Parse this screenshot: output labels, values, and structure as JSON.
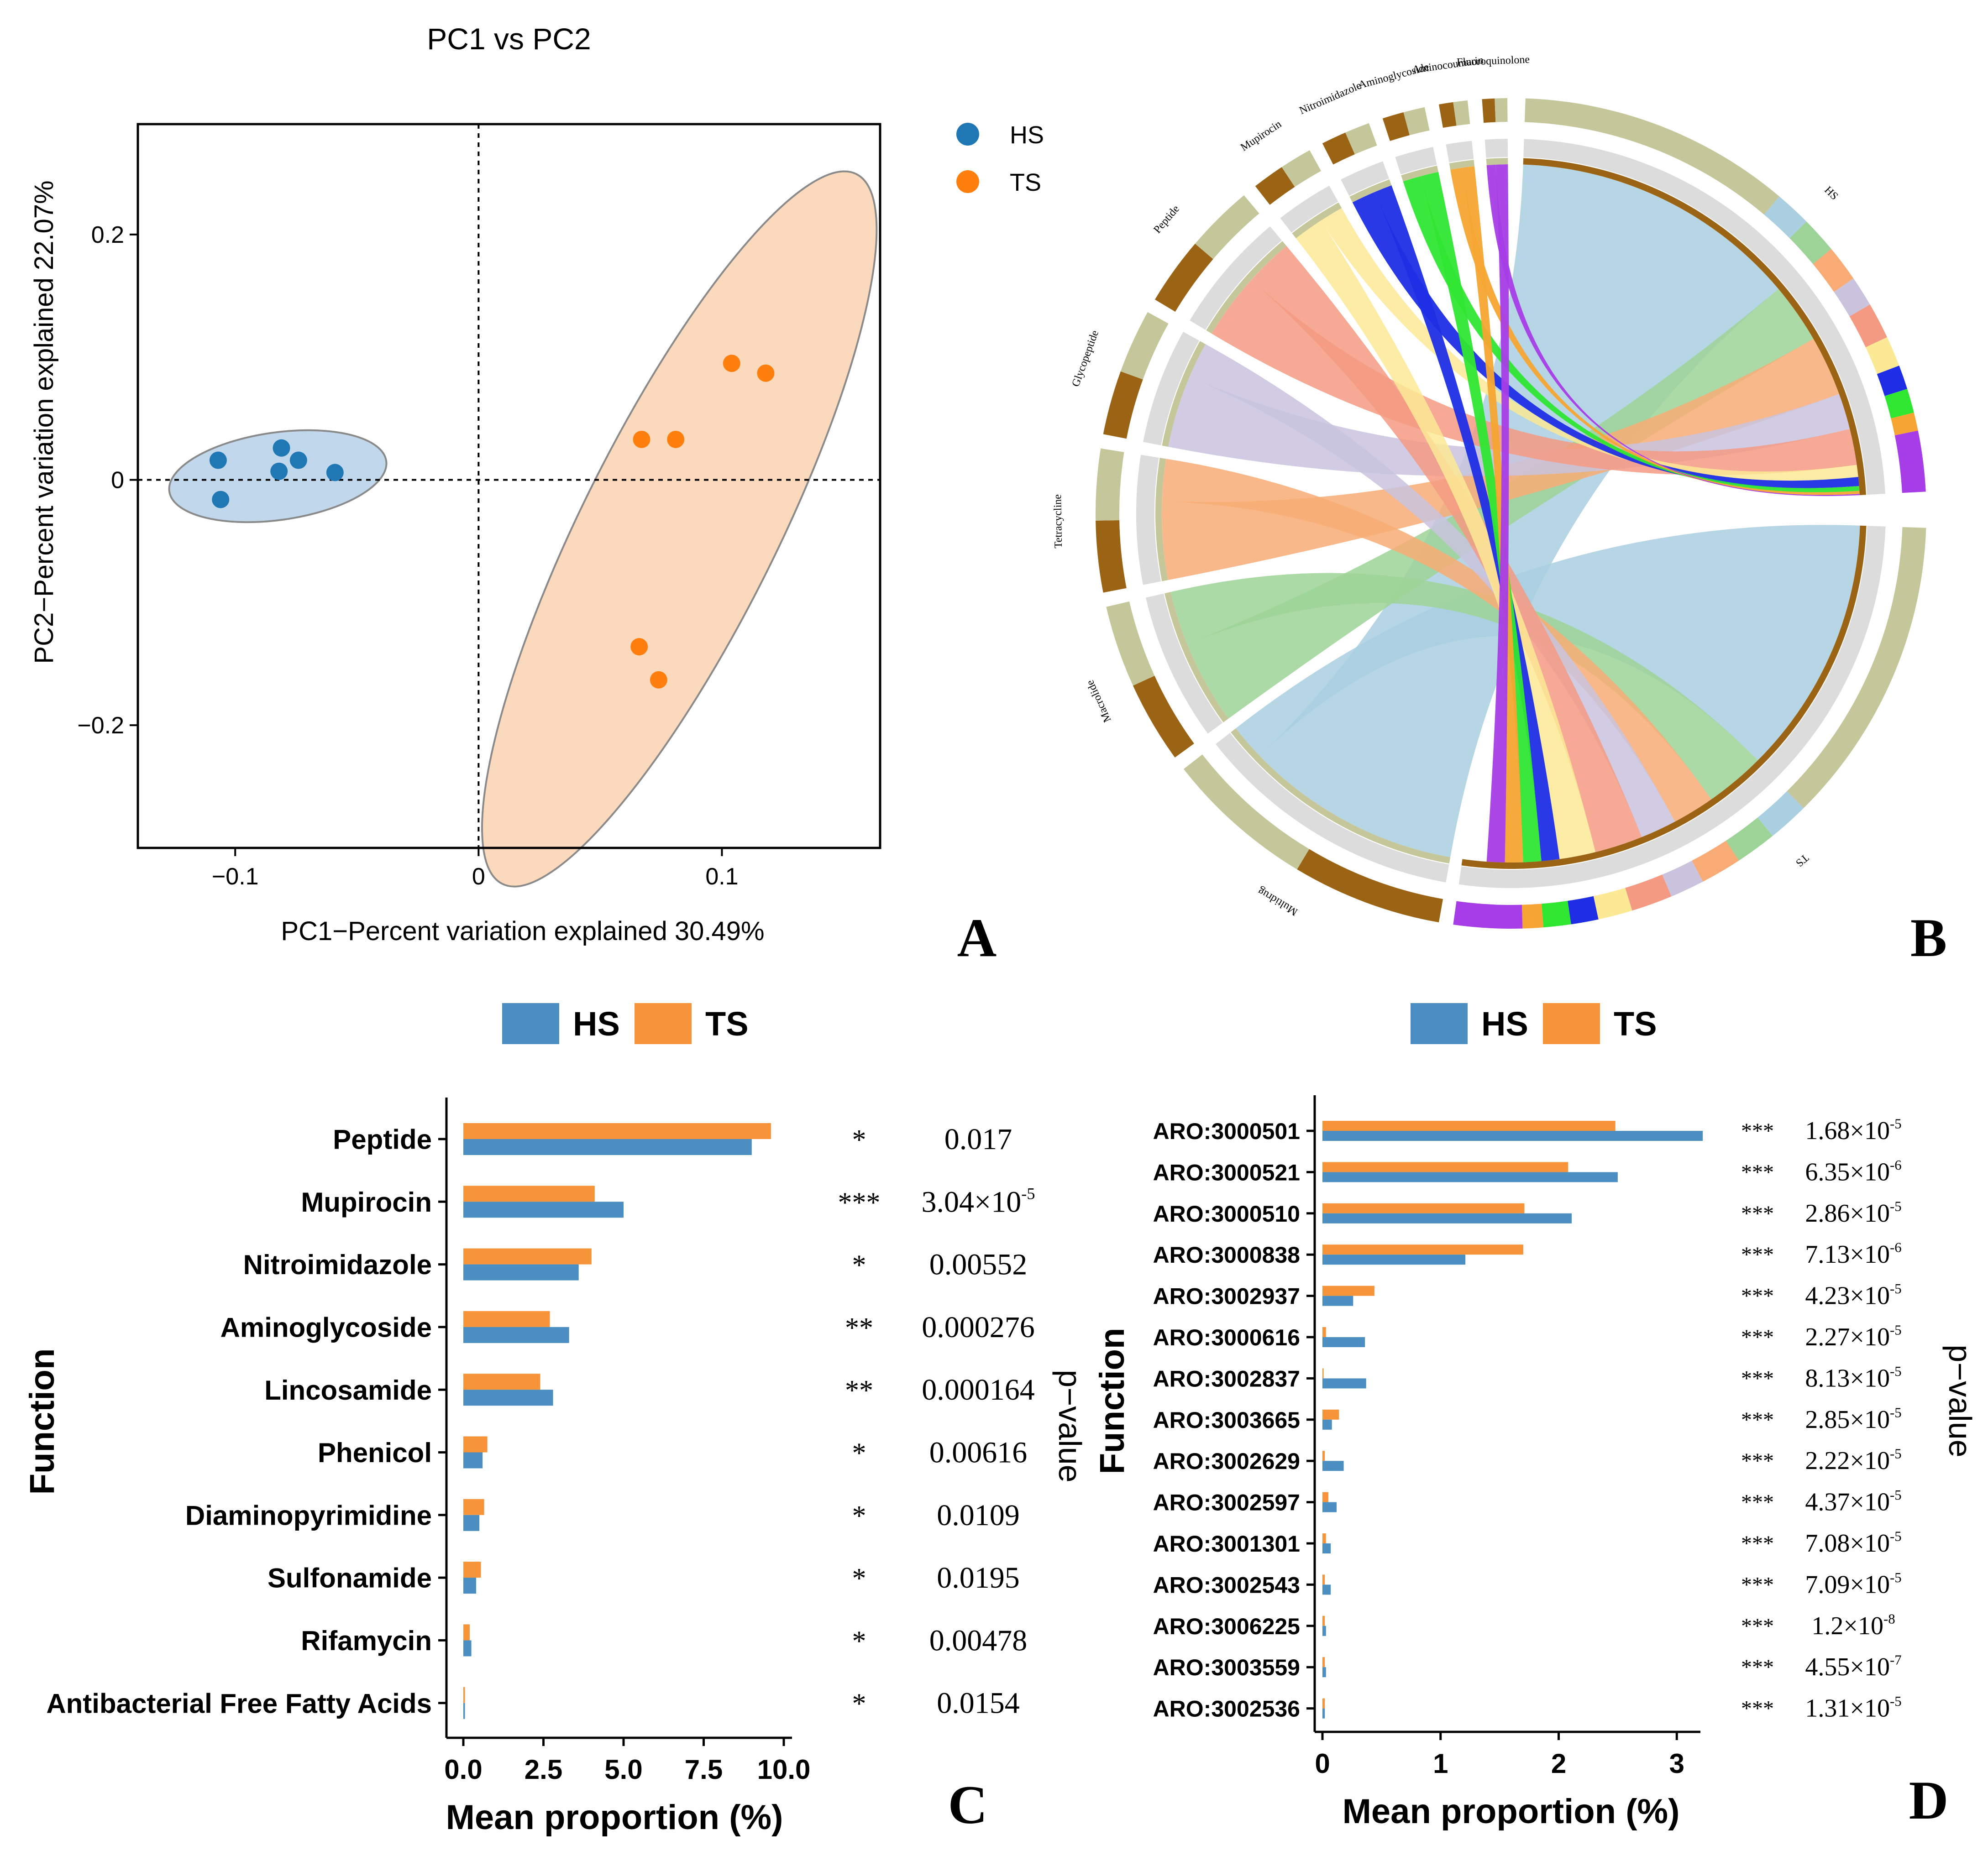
{
  "colors": {
    "hs": "#4a8ec2",
    "ts": "#f7943a",
    "hs_point": "#1f77b4",
    "ts_point": "#ff7f0e",
    "hs_ellipse": "#b9d3ea",
    "ts_ellipse": "#fbd5b5",
    "antibiotic_ring": "#9a6414",
    "sample_ring": "#c5c79a"
  },
  "panel_labels": {
    "a": "A",
    "b": "B",
    "c": "C",
    "d": "D"
  },
  "chart_data": [
    {
      "id": "A",
      "type": "scatter",
      "title": "PC1 vs PC2",
      "xlabel": "PC1−Percent variation explained 30.49%",
      "ylabel": "PC2−Percent variation explained 22.07%",
      "xlim": [
        -0.14,
        0.165
      ],
      "ylim": [
        -0.3,
        0.29
      ],
      "xticks": [
        -0.1,
        0,
        0.1
      ],
      "xtick_labels": [
        "−0.1",
        "0",
        "0.1"
      ],
      "yticks": [
        -0.2,
        0,
        0.2
      ],
      "ytick_labels": [
        "−0.2",
        "0",
        "0.2"
      ],
      "legend": {
        "position": "top-right",
        "entries": [
          "HS",
          "TS"
        ]
      },
      "series": [
        {
          "name": "HS",
          "points": [
            [
              -0.107,
              0.016
            ],
            [
              -0.106,
              -0.016
            ],
            [
              -0.081,
              0.026
            ],
            [
              -0.082,
              0.007
            ],
            [
              -0.074,
              0.016
            ],
            [
              -0.059,
              0.006
            ]
          ]
        },
        {
          "name": "TS",
          "points": [
            [
              0.104,
              0.095
            ],
            [
              0.118,
              0.087
            ],
            [
              0.067,
              0.033
            ],
            [
              0.081,
              0.033
            ],
            [
              0.066,
              -0.136
            ],
            [
              0.074,
              -0.163
            ]
          ]
        }
      ]
    },
    {
      "id": "B",
      "type": "chord",
      "groups": [
        "HS",
        "TS"
      ],
      "categories": [
        "Multidrug",
        "Macrolide",
        "Tetracycline",
        "Glycopeptide",
        "Peptide",
        "Mupirocin",
        "Nitroimidazole",
        "Aminoglycoside",
        "Aminocoumarin",
        "Fluoroquinolone"
      ],
      "link_colors": [
        "#a9cfe0",
        "#9ed397",
        "#f8ab74",
        "#c9c3de",
        "#f59a82",
        "#fbe995",
        "#1f2ee5",
        "#2fe631",
        "#f6a532",
        "#a63de6"
      ]
    },
    {
      "id": "C",
      "type": "bar",
      "orientation": "horizontal",
      "xlabel": "Mean proportion (%)",
      "ylabel": "Function",
      "right_label": "p−value",
      "xlim": [
        0,
        10
      ],
      "xticks": [
        0,
        2.5,
        5,
        7.5,
        10
      ],
      "xtick_labels": [
        "0.0",
        "2.5",
        "5.0",
        "7.5",
        "10.0"
      ],
      "legend": [
        "HS",
        "TS"
      ],
      "categories": [
        "Peptide",
        "Mupirocin",
        "Nitroimidazole",
        "Aminoglycoside",
        "Lincosamide",
        "Phenicol",
        "Diaminopyrimidine",
        "Sulfonamide",
        "Rifamycin",
        "Antibacterial Free Fatty Acids"
      ],
      "series": [
        {
          "name": "TS",
          "values": [
            9.6,
            4.1,
            4.0,
            2.7,
            2.4,
            0.75,
            0.65,
            0.55,
            0.2,
            0.05
          ]
        },
        {
          "name": "HS",
          "values": [
            9.0,
            5.0,
            3.6,
            3.3,
            2.8,
            0.6,
            0.5,
            0.4,
            0.25,
            0.05
          ]
        }
      ],
      "significance": [
        "*",
        "***",
        "*",
        "**",
        "**",
        "*",
        "*",
        "*",
        "*",
        "*"
      ],
      "p_values": [
        {
          "base": "0.017",
          "exp": ""
        },
        {
          "base": "3.04×10",
          "exp": "-5"
        },
        {
          "base": "0.00552",
          "exp": ""
        },
        {
          "base": "0.000276",
          "exp": ""
        },
        {
          "base": "0.000164",
          "exp": ""
        },
        {
          "base": "0.00616",
          "exp": ""
        },
        {
          "base": "0.0109",
          "exp": ""
        },
        {
          "base": "0.0195",
          "exp": ""
        },
        {
          "base": "0.00478",
          "exp": ""
        },
        {
          "base": "0.0154",
          "exp": ""
        }
      ]
    },
    {
      "id": "D",
      "type": "bar",
      "orientation": "horizontal",
      "xlabel": "Mean proportion (%)",
      "ylabel": "Function",
      "right_label": "p−value",
      "xlim": [
        0,
        3.2
      ],
      "xticks": [
        0,
        1,
        2,
        3
      ],
      "xtick_labels": [
        "0",
        "1",
        "2",
        "3"
      ],
      "legend": [
        "HS",
        "TS"
      ],
      "categories": [
        "ARO:3000501",
        "ARO:3000521",
        "ARO:3000510",
        "ARO:3000838",
        "ARO:3002937",
        "ARO:3000616",
        "ARO:3002837",
        "ARO:3003665",
        "ARO:3002629",
        "ARO:3002597",
        "ARO:3001301",
        "ARO:3002543",
        "ARO:3006225",
        "ARO:3003559",
        "ARO:3002536"
      ],
      "series": [
        {
          "name": "TS",
          "values": [
            2.48,
            2.08,
            1.71,
            1.7,
            0.44,
            0.03,
            0.01,
            0.14,
            0.02,
            0.05,
            0.03,
            0.02,
            0.02,
            0.02,
            0.02
          ]
        },
        {
          "name": "HS",
          "values": [
            3.22,
            2.5,
            2.11,
            1.21,
            0.26,
            0.36,
            0.37,
            0.08,
            0.18,
            0.12,
            0.07,
            0.07,
            0.03,
            0.03,
            0.02
          ]
        }
      ],
      "significance": [
        "***",
        "***",
        "***",
        "***",
        "***",
        "***",
        "***",
        "***",
        "***",
        "***",
        "***",
        "***",
        "***",
        "***",
        "***"
      ],
      "p_values": [
        {
          "base": "1.68×10",
          "exp": "-5"
        },
        {
          "base": "6.35×10",
          "exp": "-6"
        },
        {
          "base": "2.86×10",
          "exp": "-5"
        },
        {
          "base": "7.13×10",
          "exp": "-6"
        },
        {
          "base": "4.23×10",
          "exp": "-5"
        },
        {
          "base": "2.27×10",
          "exp": "-5"
        },
        {
          "base": "8.13×10",
          "exp": "-5"
        },
        {
          "base": "2.85×10",
          "exp": "-5"
        },
        {
          "base": "2.22×10",
          "exp": "-5"
        },
        {
          "base": "4.37×10",
          "exp": "-5"
        },
        {
          "base": "7.08×10",
          "exp": "-5"
        },
        {
          "base": "7.09×10",
          "exp": "-5"
        },
        {
          "base": "1.2×10",
          "exp": "-8"
        },
        {
          "base": "4.55×10",
          "exp": "-7"
        },
        {
          "base": "1.31×10",
          "exp": "-5"
        }
      ]
    }
  ]
}
